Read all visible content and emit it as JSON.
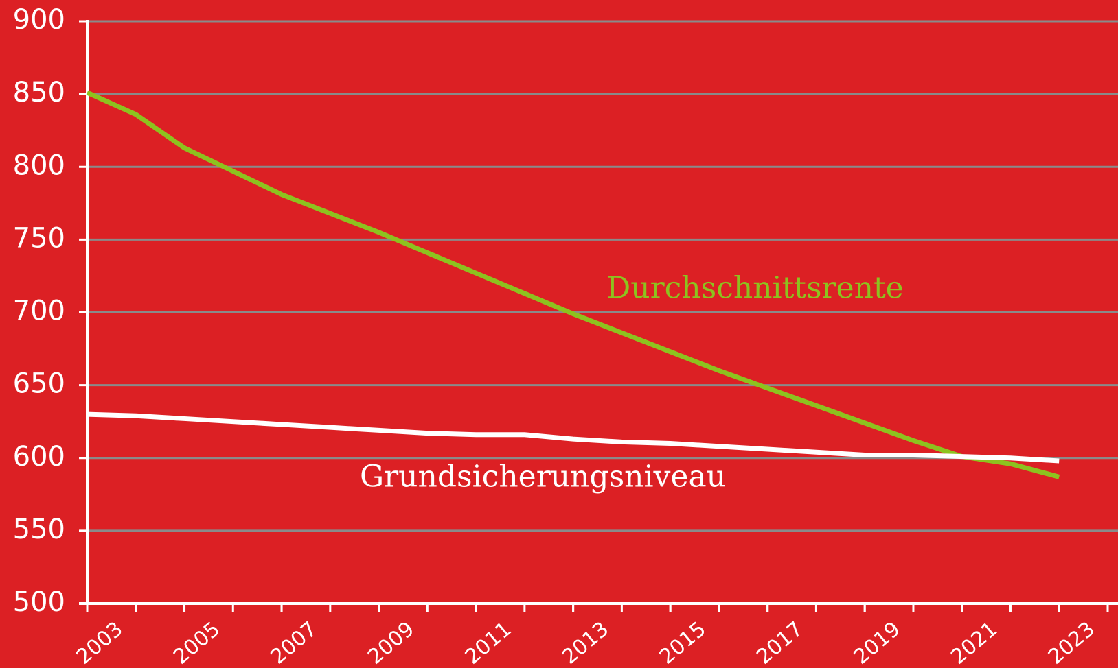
{
  "chart_data": {
    "type": "line",
    "x": [
      2003,
      2004,
      2005,
      2006,
      2007,
      2008,
      2009,
      2010,
      2011,
      2012,
      2013,
      2014,
      2015,
      2016,
      2017,
      2018,
      2019,
      2020,
      2021,
      2022,
      2023
    ],
    "series": [
      {
        "name": "Durchschnittsrente",
        "color": "#8dc21f",
        "values": [
          851,
          836,
          813,
          797,
          781,
          768,
          755,
          741,
          727,
          713,
          699,
          686,
          673,
          660,
          648,
          636,
          624,
          612,
          601,
          596,
          587
        ]
      },
      {
        "name": "Grundsicherungsniveau",
        "color": "#ffffff",
        "values": [
          630,
          629,
          627,
          625,
          623,
          621,
          619,
          617,
          616,
          616,
          613,
          611,
          610,
          608,
          606,
          604,
          602,
          602,
          601,
          600,
          598
        ]
      }
    ],
    "xlim": [
      2003,
      2024
    ],
    "xticks": [
      2003,
      2005,
      2007,
      2009,
      2011,
      2013,
      2015,
      2017,
      2019,
      2021,
      2023
    ],
    "ylim": [
      500,
      900
    ],
    "yticks": [
      500,
      550,
      600,
      650,
      700,
      750,
      800,
      850,
      900
    ],
    "grid": true
  }
}
